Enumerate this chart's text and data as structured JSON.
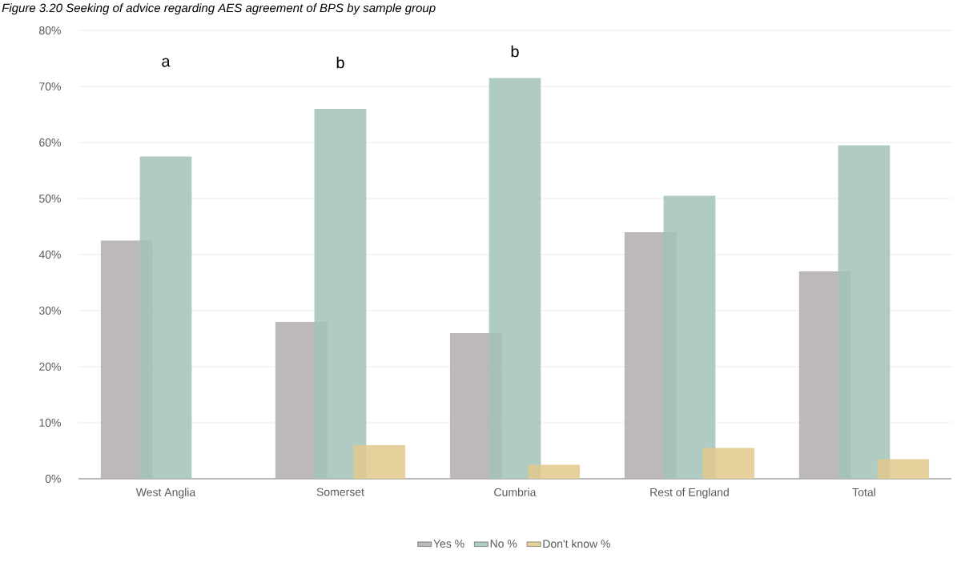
{
  "chart_data": {
    "type": "bar",
    "title": "Figure 3.20 Seeking of advice regarding AES agreement of BPS by sample group",
    "categories": [
      "West Anglia",
      "Somerset",
      "Cumbria",
      "Rest of England",
      "Total"
    ],
    "series": [
      {
        "name": "Yes %",
        "color": "#b3adad",
        "values": [
          42.5,
          28,
          26,
          44,
          37
        ]
      },
      {
        "name": "No %",
        "color": "#a2c1ba",
        "values": [
          57.5,
          66,
          71.5,
          50.5,
          59.5
        ]
      },
      {
        "name": "Don't know %",
        "color": "#e2c98c",
        "values": [
          0,
          6,
          2.5,
          5.5,
          3.5
        ]
      }
    ],
    "ylim": [
      0,
      80
    ],
    "yticks": [
      {
        "value": 0,
        "label": "0%"
      },
      {
        "value": 10,
        "label": "10%"
      },
      {
        "value": 20,
        "label": "20%"
      },
      {
        "value": 30,
        "label": "30%"
      },
      {
        "value": 40,
        "label": "40%"
      },
      {
        "value": 50,
        "label": "50%"
      },
      {
        "value": 60,
        "label": "60%"
      },
      {
        "value": 70,
        "label": "70%"
      },
      {
        "value": 80,
        "label": "80%"
      }
    ],
    "grid": "y",
    "legend": "bottom",
    "annotations": [
      "a",
      "b",
      "b"
    ]
  }
}
